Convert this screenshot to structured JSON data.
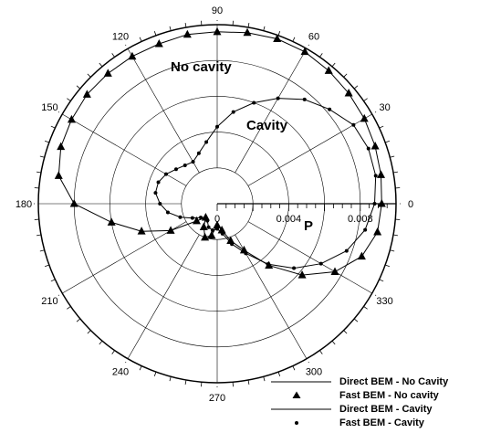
{
  "chart_data": {
    "type": "line",
    "projection": "polar",
    "grid": true,
    "radial_axis": {
      "range": [
        0,
        0.01
      ],
      "tick_labels": [
        "0",
        "0.004",
        "0.008"
      ],
      "label": "P"
    },
    "angular_ticks": [
      "0",
      "30",
      "60",
      "90",
      "120",
      "150",
      "180",
      "210",
      "240",
      "270",
      "300",
      "330"
    ],
    "annotations": [
      "No cavity",
      "Cavity"
    ],
    "legend": {
      "position": "bottom-right",
      "entries": [
        "Direct BEM - No Cavity",
        "Fast BEM - No cavity",
        "Direct BEM - Cavity",
        "Fast BEM - Cavity"
      ]
    },
    "series": [
      {
        "name": "Direct BEM - No Cavity",
        "style": "line",
        "theta": [
          0,
          10,
          20,
          30,
          40,
          50,
          60,
          70,
          80,
          90,
          100,
          110,
          120,
          130,
          140,
          150,
          160,
          170,
          180,
          190,
          200,
          210,
          220,
          230,
          240,
          250,
          260,
          270,
          280,
          290,
          300,
          310,
          320,
          330,
          340,
          350
        ],
        "r": [
          0.0092,
          0.0093,
          0.0094,
          0.0095,
          0.0096,
          0.0097,
          0.0098,
          0.0098,
          0.0097,
          0.0096,
          0.0096,
          0.0095,
          0.0095,
          0.0095,
          0.0095,
          0.0094,
          0.0093,
          0.009,
          0.008,
          0.006,
          0.0045,
          0.003,
          0.0015,
          0.001,
          0.0015,
          0.002,
          0.0018,
          0.0012,
          0.0015,
          0.0022,
          0.003,
          0.0045,
          0.0062,
          0.0076,
          0.0086,
          0.0091
        ]
      },
      {
        "name": "Fast BEM - No cavity",
        "style": "triangle",
        "theta": [
          0,
          10,
          20,
          30,
          40,
          50,
          60,
          70,
          80,
          90,
          100,
          110,
          120,
          130,
          140,
          150,
          160,
          170,
          180,
          190,
          200,
          210,
          220,
          230,
          240,
          250,
          260,
          270,
          280,
          290,
          300,
          310,
          320,
          330,
          340,
          350
        ],
        "r": [
          0.0092,
          0.0093,
          0.0094,
          0.0095,
          0.0096,
          0.0097,
          0.0098,
          0.0098,
          0.0097,
          0.0096,
          0.0096,
          0.0095,
          0.0095,
          0.0095,
          0.0095,
          0.0094,
          0.0093,
          0.009,
          0.008,
          0.006,
          0.0045,
          0.003,
          0.0015,
          0.001,
          0.0015,
          0.002,
          0.0018,
          0.0012,
          0.0015,
          0.0022,
          0.003,
          0.0045,
          0.0062,
          0.0076,
          0.0086,
          0.0091
        ]
      },
      {
        "name": "Direct BEM - Cavity",
        "style": "line",
        "theta": [
          0,
          10,
          20,
          30,
          40,
          50,
          60,
          70,
          80,
          90,
          100,
          110,
          120,
          130,
          140,
          150,
          160,
          170,
          180,
          190,
          200,
          210,
          220,
          230,
          240,
          250,
          260,
          270,
          280,
          290,
          300,
          310,
          320,
          330,
          340,
          350
        ],
        "r": [
          0.0088,
          0.009,
          0.009,
          0.0088,
          0.0082,
          0.0076,
          0.0068,
          0.006,
          0.0052,
          0.0043,
          0.0035,
          0.003,
          0.0027,
          0.0028,
          0.003,
          0.0033,
          0.0035,
          0.0035,
          0.0032,
          0.0028,
          0.0022,
          0.0016,
          0.0012,
          0.001,
          0.0011,
          0.0014,
          0.0015,
          0.0014,
          0.0017,
          0.0024,
          0.0032,
          0.0044,
          0.0056,
          0.0067,
          0.0077,
          0.0084
        ]
      },
      {
        "name": "Fast BEM - Cavity",
        "style": "dot",
        "theta": [
          0,
          10,
          20,
          30,
          40,
          50,
          60,
          70,
          80,
          90,
          100,
          110,
          120,
          130,
          140,
          150,
          160,
          170,
          180,
          190,
          200,
          210,
          220,
          230,
          240,
          250,
          260,
          270,
          280,
          290,
          300,
          310,
          320,
          330,
          340,
          350
        ],
        "r": [
          0.0088,
          0.009,
          0.009,
          0.0088,
          0.0082,
          0.0076,
          0.0068,
          0.006,
          0.0052,
          0.0043,
          0.0035,
          0.003,
          0.0027,
          0.0028,
          0.003,
          0.0033,
          0.0035,
          0.0035,
          0.0032,
          0.0028,
          0.0022,
          0.0016,
          0.0012,
          0.001,
          0.0011,
          0.0014,
          0.0015,
          0.0014,
          0.0017,
          0.0024,
          0.0032,
          0.0044,
          0.0056,
          0.0067,
          0.0077,
          0.0084
        ]
      }
    ]
  }
}
